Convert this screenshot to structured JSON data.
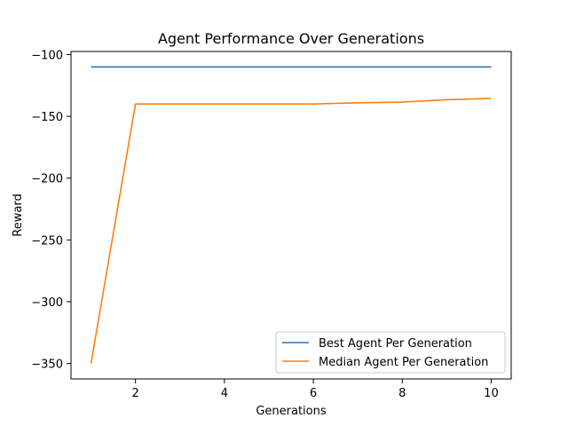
{
  "chart_data": {
    "type": "line",
    "title": "Agent Performance Over Generations",
    "xlabel": "Generations",
    "ylabel": "Reward",
    "x": [
      1,
      2,
      3,
      4,
      5,
      6,
      7,
      8,
      9,
      10
    ],
    "xlim": [
      0.55,
      10.45
    ],
    "ylim": [
      -362.5,
      -97.5
    ],
    "xticks": [
      2,
      4,
      6,
      8,
      10
    ],
    "xtick_labels": [
      "2",
      "4",
      "6",
      "8",
      "10"
    ],
    "yticks": [
      -100,
      -150,
      -200,
      -250,
      -300,
      -350
    ],
    "ytick_labels": [
      "−100",
      "−150",
      "−200",
      "−250",
      "−300",
      "−350"
    ],
    "grid": false,
    "legend_position": "bottom-right",
    "series": [
      {
        "name": "Best Agent Per Generation",
        "color": "#1f77b4",
        "values": [
          -110,
          -110,
          -110,
          -110,
          -110,
          -110,
          -110,
          -110,
          -110,
          -110
        ]
      },
      {
        "name": "Median Agent Per Generation",
        "color": "#ff7f0e",
        "values": [
          -350,
          -140,
          -140,
          -140,
          -140,
          -140,
          -139,
          -138.5,
          -136.5,
          -135.5
        ]
      }
    ]
  }
}
